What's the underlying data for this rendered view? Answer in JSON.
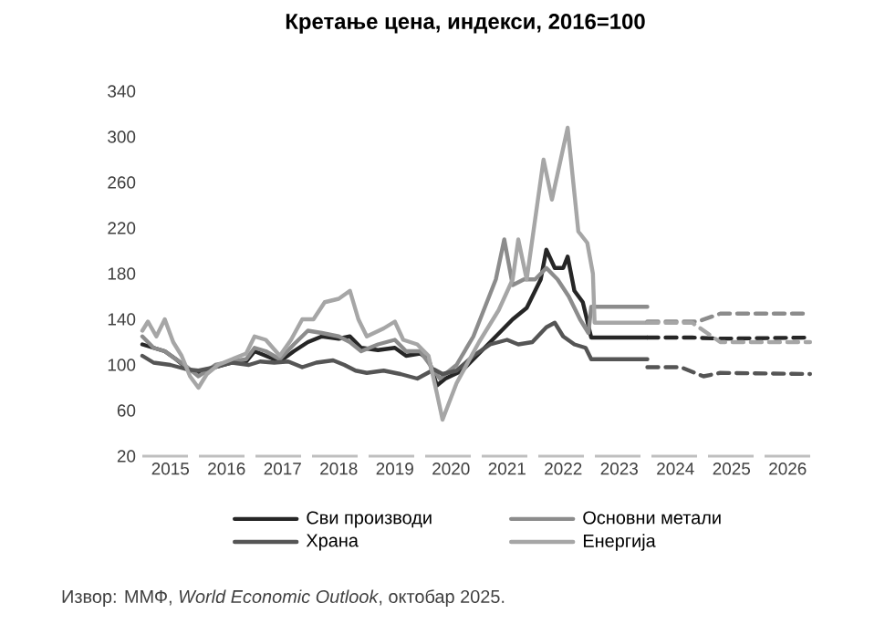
{
  "chart_data": {
    "type": "line",
    "title": "Кретање цена, индекси, 2016=100",
    "annotations": [
      "Извор: ММФ, *World Economic Outlook*, октобар 2025."
    ],
    "xlim": [
      2015,
      2027
    ],
    "xticks": [
      {
        "value": 2015.5,
        "label": "2015"
      },
      {
        "value": 2016.5,
        "label": "2016"
      },
      {
        "value": 2017.5,
        "label": "2017"
      },
      {
        "value": 2018.5,
        "label": "2018"
      },
      {
        "value": 2019.5,
        "label": "2019"
      },
      {
        "value": 2020.5,
        "label": "2020"
      },
      {
        "value": 2021.5,
        "label": "2021"
      },
      {
        "value": 2022.5,
        "label": "2022"
      },
      {
        "value": 2023.5,
        "label": "2023"
      },
      {
        "value": 2024.5,
        "label": "2024"
      },
      {
        "value": 2025.5,
        "label": "2025"
      },
      {
        "value": 2026.5,
        "label": "2026"
      }
    ],
    "ylim": [
      20,
      340
    ],
    "yticks": [
      20,
      60,
      100,
      140,
      180,
      220,
      260,
      300,
      340
    ],
    "grid": false,
    "legend": "bottom",
    "marker": "none",
    "series": [
      {
        "name": "Сви производи",
        "color": "#262626",
        "line_style": "solid",
        "x": [
          2015.0,
          2015.2,
          2015.4,
          2015.6,
          2015.8,
          2016.0,
          2016.3,
          2016.6,
          2016.85,
          2017.0,
          2017.2,
          2017.45,
          2017.7,
          2017.95,
          2018.2,
          2018.5,
          2018.7,
          2018.9,
          2019.2,
          2019.5,
          2019.7,
          2019.95,
          2020.1,
          2020.25,
          2020.4,
          2020.7,
          2021.0,
          2021.3,
          2021.6,
          2021.85,
          2022.1,
          2022.2,
          2022.35,
          2022.5,
          2022.58,
          2022.7,
          2022.85,
          2023.0,
          2024.0
        ],
        "values": [
          118,
          115,
          112,
          105,
          97,
          92,
          98,
          102,
          103,
          112,
          108,
          103,
          112,
          120,
          125,
          123,
          125,
          115,
          113,
          115,
          108,
          110,
          105,
          82,
          88,
          95,
          110,
          125,
          140,
          150,
          175,
          201,
          185,
          185,
          195,
          165,
          155,
          124,
          124
        ]
      },
      {
        "name": "Основни метали",
        "color": "#8c8c8c",
        "line_style": "solid",
        "x": [
          2015.0,
          2015.2,
          2015.4,
          2015.6,
          2015.8,
          2016.0,
          2016.3,
          2016.6,
          2016.85,
          2017.0,
          2017.2,
          2017.45,
          2017.7,
          2017.95,
          2018.2,
          2018.5,
          2018.7,
          2018.9,
          2019.2,
          2019.5,
          2019.7,
          2019.95,
          2020.2,
          2020.3,
          2020.6,
          2020.9,
          2021.1,
          2021.3,
          2021.45,
          2021.6,
          2021.8,
          2022.0,
          2022.2,
          2022.4,
          2022.6,
          2022.8,
          2022.95,
          2023.0,
          2024.0
        ],
        "values": [
          125,
          115,
          112,
          105,
          98,
          90,
          100,
          103,
          105,
          115,
          112,
          105,
          118,
          130,
          128,
          125,
          120,
          112,
          118,
          122,
          112,
          112,
          95,
          88,
          100,
          125,
          150,
          175,
          210,
          170,
          175,
          175,
          185,
          175,
          160,
          140,
          128,
          151,
          151
        ]
      },
      {
        "name": "Храна",
        "color": "#555555",
        "line_style": "solid",
        "x": [
          2015.0,
          2015.2,
          2015.5,
          2015.8,
          2016.0,
          2016.3,
          2016.6,
          2016.9,
          2017.1,
          2017.35,
          2017.6,
          2017.85,
          2018.1,
          2018.4,
          2018.6,
          2018.8,
          2019.0,
          2019.3,
          2019.6,
          2019.9,
          2020.2,
          2020.35,
          2020.6,
          2020.9,
          2021.2,
          2021.5,
          2021.7,
          2021.95,
          2022.2,
          2022.35,
          2022.5,
          2022.7,
          2022.9,
          2023.0,
          2024.0
        ],
        "values": [
          108,
          102,
          100,
          96,
          95,
          98,
          102,
          100,
          103,
          102,
          103,
          98,
          102,
          104,
          100,
          95,
          93,
          95,
          92,
          88,
          96,
          92,
          95,
          108,
          118,
          122,
          118,
          120,
          133,
          137,
          125,
          118,
          115,
          105,
          105
        ]
      },
      {
        "name": "Енергија",
        "color": "#a6a6a6",
        "line_style": "solid",
        "x": [
          2015.0,
          2015.1,
          2015.25,
          2015.4,
          2015.55,
          2015.7,
          2015.85,
          2016.0,
          2016.15,
          2016.35,
          2016.6,
          2016.85,
          2017.0,
          2017.2,
          2017.45,
          2017.65,
          2017.85,
          2018.05,
          2018.25,
          2018.5,
          2018.7,
          2018.85,
          2019.0,
          2019.3,
          2019.5,
          2019.65,
          2019.9,
          2020.1,
          2020.25,
          2020.35,
          2020.6,
          2021.0,
          2021.35,
          2021.6,
          2021.7,
          2021.85,
          2022.15,
          2022.3,
          2022.58,
          2022.77,
          2022.93,
          2023.03,
          2023.06,
          2024.0
        ],
        "values": [
          130,
          138,
          125,
          140,
          120,
          108,
          90,
          80,
          92,
          100,
          105,
          110,
          125,
          122,
          108,
          122,
          140,
          140,
          155,
          158,
          165,
          140,
          125,
          132,
          138,
          122,
          118,
          108,
          75,
          52,
          84,
          120,
          148,
          175,
          210,
          175,
          280,
          245,
          308,
          217,
          207,
          180,
          137,
          137
        ]
      },
      {
        "color": "#262626",
        "line_style": "dashed",
        "x": [
          2024.0,
          2024.8,
          2025.3,
          2026.9
        ],
        "values": [
          124,
          124,
          123,
          124
        ]
      },
      {
        "color": "#8c8c8c",
        "line_style": "dashed",
        "x": [
          2024.0,
          2024.9,
          2025.3,
          2026.9
        ],
        "values": [
          138,
          138,
          145,
          145
        ]
      },
      {
        "color": "#555555",
        "line_style": "dashed",
        "x": [
          2024.0,
          2024.6,
          2025.0,
          2025.3,
          2026.9
        ],
        "values": [
          98,
          98,
          90,
          93,
          92
        ]
      },
      {
        "color": "#a6a6a6",
        "line_style": "dashed",
        "x": [
          2024.0,
          2024.8,
          2025.3,
          2026.9
        ],
        "values": [
          137,
          137,
          120,
          120
        ]
      }
    ]
  }
}
